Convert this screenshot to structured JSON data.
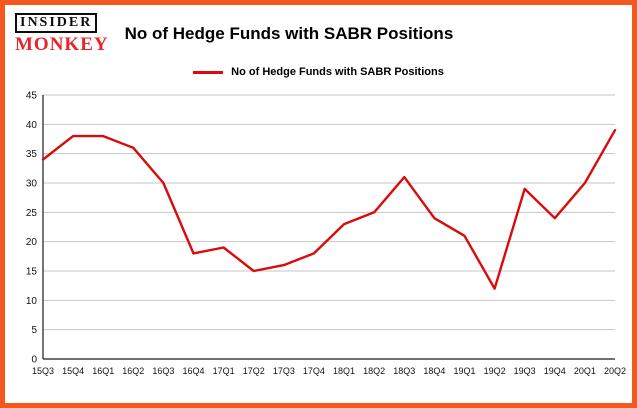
{
  "header": {
    "logo_line1": "INSIDER",
    "logo_line2": "MONKEY",
    "title": "No of Hedge Funds with SABR Positions"
  },
  "legend": {
    "label": "No of Hedge Funds with SABR Positions"
  },
  "colors": {
    "line": "#da0b0b",
    "frame_border": "#f4581f",
    "grid": "#c6c6c6",
    "axis": "#1a1a1a",
    "tick_text": "#111111"
  },
  "chart_data": {
    "type": "line",
    "title": "No of Hedge Funds with SABR Positions",
    "categories": [
      "15Q3",
      "15Q4",
      "16Q1",
      "16Q2",
      "16Q3",
      "16Q4",
      "17Q1",
      "17Q2",
      "17Q3",
      "17Q4",
      "18Q1",
      "18Q2",
      "18Q3",
      "18Q4",
      "19Q1",
      "19Q2",
      "19Q3",
      "19Q4",
      "20Q1",
      "20Q2"
    ],
    "values": [
      34,
      38,
      38,
      36,
      30,
      18,
      19,
      15,
      16,
      18,
      23,
      25,
      31,
      24,
      21,
      12,
      29,
      24,
      30,
      39
    ],
    "xlabel": "",
    "ylabel": "",
    "ylim": [
      0,
      45
    ],
    "ytick_step": 5,
    "grid": "horizontal",
    "legend_position": "top"
  }
}
